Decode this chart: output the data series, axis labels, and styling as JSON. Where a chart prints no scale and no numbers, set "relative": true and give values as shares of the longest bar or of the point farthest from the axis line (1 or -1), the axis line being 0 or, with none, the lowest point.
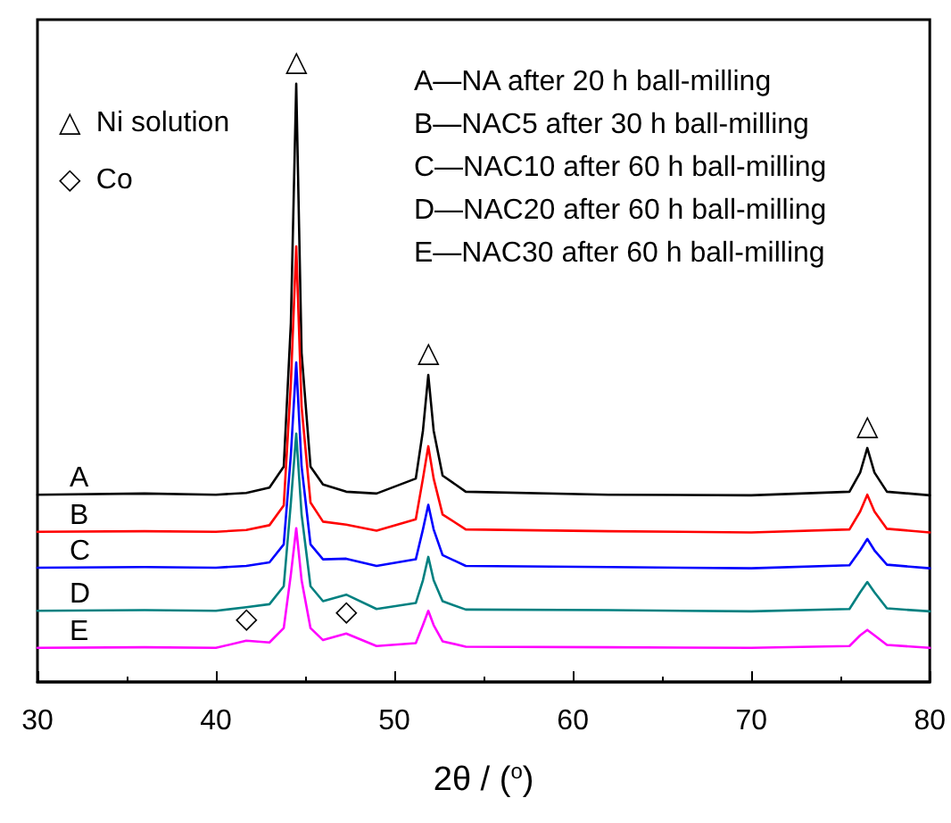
{
  "chart_data": {
    "type": "line",
    "relative": true,
    "xlabel": "2θ / ($^{o}$)",
    "xlim": [
      30,
      80
    ],
    "xticks": [
      30,
      40,
      50,
      60,
      70,
      80
    ],
    "grid": false,
    "legend": false,
    "marker": "none",
    "line_style": "solid",
    "annotations": [
      "△  Ni solution",
      "◇  Co",
      "A—NA after 20 h ball-milling",
      "B—NAC5 after 30 h ball-milling",
      "C—NAC10 after 60 h ball-milling",
      "D—NAC20 after 60 h ball-milling",
      "E—NAC30 after 60 h ball-milling",
      {
        "text": "△",
        "x": 44.5,
        "y": 1.0
      },
      {
        "text": "△",
        "x": 51.9,
        "y": 0.513
      },
      {
        "text": "△",
        "x": 76.5,
        "y": 0.391
      },
      {
        "text": "◇",
        "x": 41.7,
        "y": 0.069
      },
      {
        "text": "◇",
        "x": 47.3,
        "y": 0.081
      }
    ],
    "x": [
      30,
      36,
      40,
      41.7,
      43,
      43.8,
      44.2,
      44.5,
      44.8,
      45.3,
      46,
      47.3,
      49,
      51.2,
      51.6,
      51.9,
      52.2,
      52.7,
      54,
      62,
      70,
      75.5,
      76.1,
      76.5,
      76.9,
      77.6,
      80
    ],
    "series": [
      {
        "name": "A",
        "color": "#000000",
        "values": [
          0.313,
          0.315,
          0.313,
          0.316,
          0.325,
          0.36,
          0.6,
          1.0,
          0.55,
          0.36,
          0.33,
          0.318,
          0.315,
          0.34,
          0.42,
          0.513,
          0.42,
          0.345,
          0.318,
          0.313,
          0.312,
          0.318,
          0.35,
          0.391,
          0.35,
          0.318,
          0.312
        ]
      },
      {
        "name": "B",
        "color": "#ff0000",
        "values": [
          0.251,
          0.252,
          0.251,
          0.254,
          0.262,
          0.295,
          0.5,
          0.728,
          0.46,
          0.3,
          0.268,
          0.263,
          0.253,
          0.272,
          0.34,
          0.394,
          0.34,
          0.28,
          0.255,
          0.252,
          0.25,
          0.255,
          0.285,
          0.313,
          0.285,
          0.256,
          0.25
        ]
      },
      {
        "name": "C",
        "color": "#0000ff",
        "values": [
          0.191,
          0.192,
          0.191,
          0.194,
          0.2,
          0.23,
          0.38,
          0.534,
          0.36,
          0.23,
          0.205,
          0.206,
          0.194,
          0.205,
          0.255,
          0.296,
          0.255,
          0.212,
          0.194,
          0.192,
          0.19,
          0.195,
          0.22,
          0.239,
          0.22,
          0.196,
          0.19
        ]
      },
      {
        "name": "D",
        "color": "#008080",
        "values": [
          0.119,
          0.12,
          0.119,
          0.125,
          0.13,
          0.16,
          0.3,
          0.415,
          0.28,
          0.16,
          0.135,
          0.146,
          0.122,
          0.132,
          0.17,
          0.209,
          0.17,
          0.135,
          0.121,
          0.12,
          0.118,
          0.122,
          0.15,
          0.167,
          0.15,
          0.123,
          0.118
        ]
      },
      {
        "name": "E",
        "color": "#ff00ff",
        "values": [
          0.057,
          0.058,
          0.057,
          0.069,
          0.066,
          0.09,
          0.18,
          0.257,
          0.17,
          0.09,
          0.07,
          0.081,
          0.06,
          0.065,
          0.095,
          0.119,
          0.095,
          0.068,
          0.059,
          0.058,
          0.057,
          0.06,
          0.078,
          0.087,
          0.078,
          0.062,
          0.057
        ]
      }
    ]
  }
}
